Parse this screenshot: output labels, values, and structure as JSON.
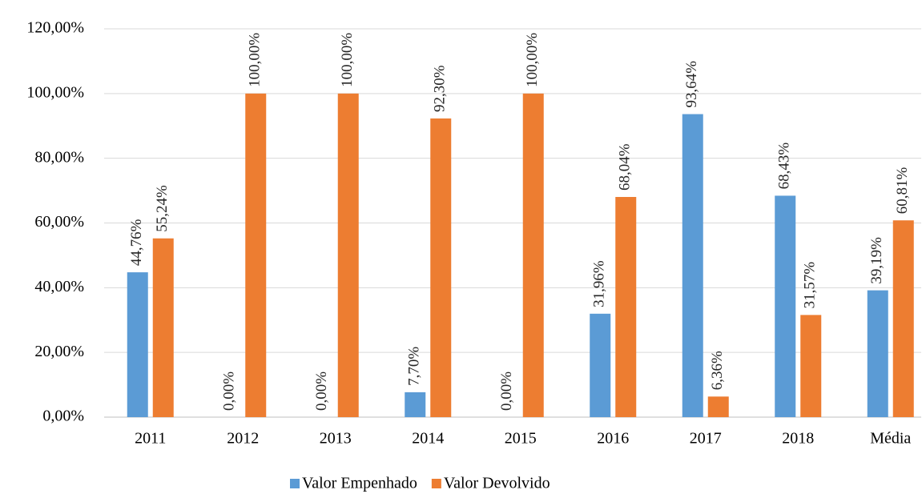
{
  "chart_data": {
    "type": "bar",
    "categories": [
      "2011",
      "2012",
      "2013",
      "2014",
      "2015",
      "2016",
      "2017",
      "2018",
      "Média"
    ],
    "series": [
      {
        "name": "Valor Empenhado",
        "color": "#5b9bd5",
        "values": [
          44.76,
          0,
          0,
          7.7,
          0,
          31.96,
          93.64,
          68.43,
          39.19
        ],
        "value_labels": [
          "44,76%",
          "0,00%",
          "0,00%",
          "7,70%",
          "0,00%",
          "31,96%",
          "93,64%",
          "68,43%",
          "39,19%"
        ]
      },
      {
        "name": "Valor Devolvido",
        "color": "#ed7d31",
        "values": [
          55.24,
          100,
          100,
          92.3,
          100,
          68.04,
          6.36,
          31.57,
          60.81
        ],
        "value_labels": [
          "55,24%",
          "100,00%",
          "100,00%",
          "92,30%",
          "100,00%",
          "68,04%",
          "6,36%",
          "31,57%",
          "60,81%"
        ]
      }
    ],
    "ylim": [
      0,
      120
    ],
    "yticks": [
      {
        "value": 0,
        "label": "0,00%"
      },
      {
        "value": 20,
        "label": "20,00%"
      },
      {
        "value": 40,
        "label": "40,00%"
      },
      {
        "value": 60,
        "label": "60,00%"
      },
      {
        "value": 80,
        "label": "80,00%"
      },
      {
        "value": 100,
        "label": "100,00%"
      },
      {
        "value": 120,
        "label": "120,00%"
      }
    ],
    "grid": true,
    "legend": "bottom"
  }
}
